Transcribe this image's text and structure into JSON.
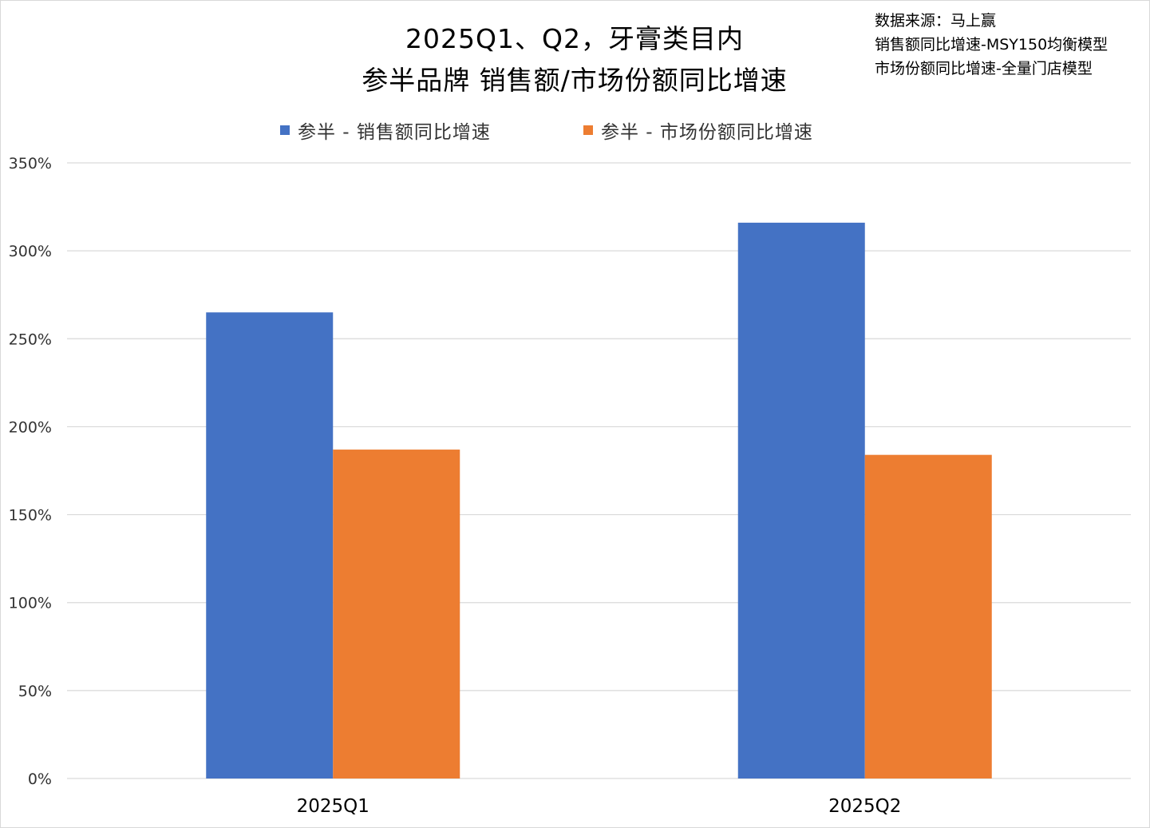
{
  "header": {
    "title_line1": "2025Q1、Q2，牙膏类目内",
    "title_line2": "参半品牌 销售额/市场份额同比增速",
    "source_line1": "数据来源：马上赢",
    "source_line2": "销售额同比增速-MSY150均衡模型",
    "source_line3": "市场份额同比增速-全量门店模型"
  },
  "chart_data": {
    "type": "bar",
    "title": "2025Q1、Q2，牙膏类目内 参半品牌 销售额/市场份额同比增速",
    "categories": [
      "2025Q1",
      "2025Q2"
    ],
    "series": [
      {
        "name": "参半 - 销售额同比增速",
        "values": [
          265,
          316
        ],
        "color": "#4472c4"
      },
      {
        "name": "参半 - 市场份额同比增速",
        "values": [
          187,
          184
        ],
        "color": "#ed7d31"
      }
    ],
    "unit": "%",
    "ylim": [
      0,
      350
    ],
    "yticks": [
      0,
      50,
      100,
      150,
      200,
      250,
      300,
      350
    ],
    "ytick_labels": [
      "0%",
      "50%",
      "100%",
      "150%",
      "200%",
      "250%",
      "300%",
      "350%"
    ],
    "grid": true,
    "gridline_color": "#d9d9d9",
    "legend_position": "top"
  }
}
